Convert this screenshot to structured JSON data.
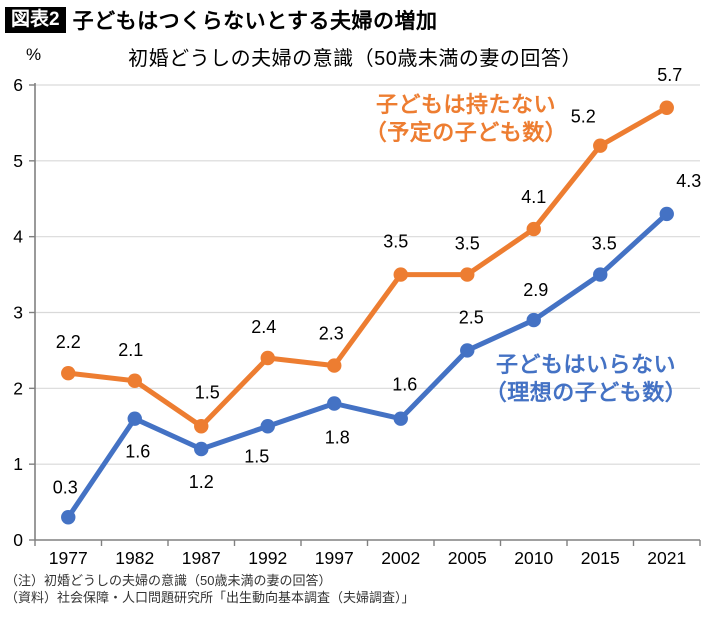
{
  "header": {
    "badge": "図表2",
    "title": "子どもはつくらないとする夫婦の増加"
  },
  "chart_data": {
    "type": "line",
    "title": "初婚どうしの夫婦の意識（50歳未満の妻の回答）",
    "unit_label": "%",
    "categories": [
      "1977",
      "1982",
      "1987",
      "1992",
      "1997",
      "2002",
      "2005",
      "2010",
      "2015",
      "2021"
    ],
    "series": [
      {
        "name": "子どもは持たない（予定の子ども数）",
        "label_lines": [
          "子どもは持たない",
          "（予定の子ども数）"
        ],
        "color": "#ED7D31",
        "values": [
          2.2,
          2.1,
          1.5,
          2.4,
          2.3,
          3.5,
          3.5,
          4.1,
          5.2,
          5.7
        ]
      },
      {
        "name": "子どもはいらない（理想の子ども数）",
        "label_lines": [
          "子どもはいらない",
          "（理想の子ども数）"
        ],
        "color": "#4472C4",
        "values": [
          0.3,
          1.6,
          1.2,
          1.5,
          1.8,
          1.6,
          2.5,
          2.9,
          3.5,
          4.3
        ]
      }
    ],
    "ylim": [
      0,
      6
    ],
    "ytick_interval": 1,
    "grid": true,
    "legend_position": "inline-annotations",
    "axis_color": "#808080",
    "grid_color": "#D9D9D9",
    "label_color": "#000000"
  },
  "notes": [
    "（注）初婚どうしの夫婦の意識（50歳未満の妻の回答）",
    "（資料）社会保障・人口問題研究所「出生動向基本調査（夫婦調査）」"
  ]
}
